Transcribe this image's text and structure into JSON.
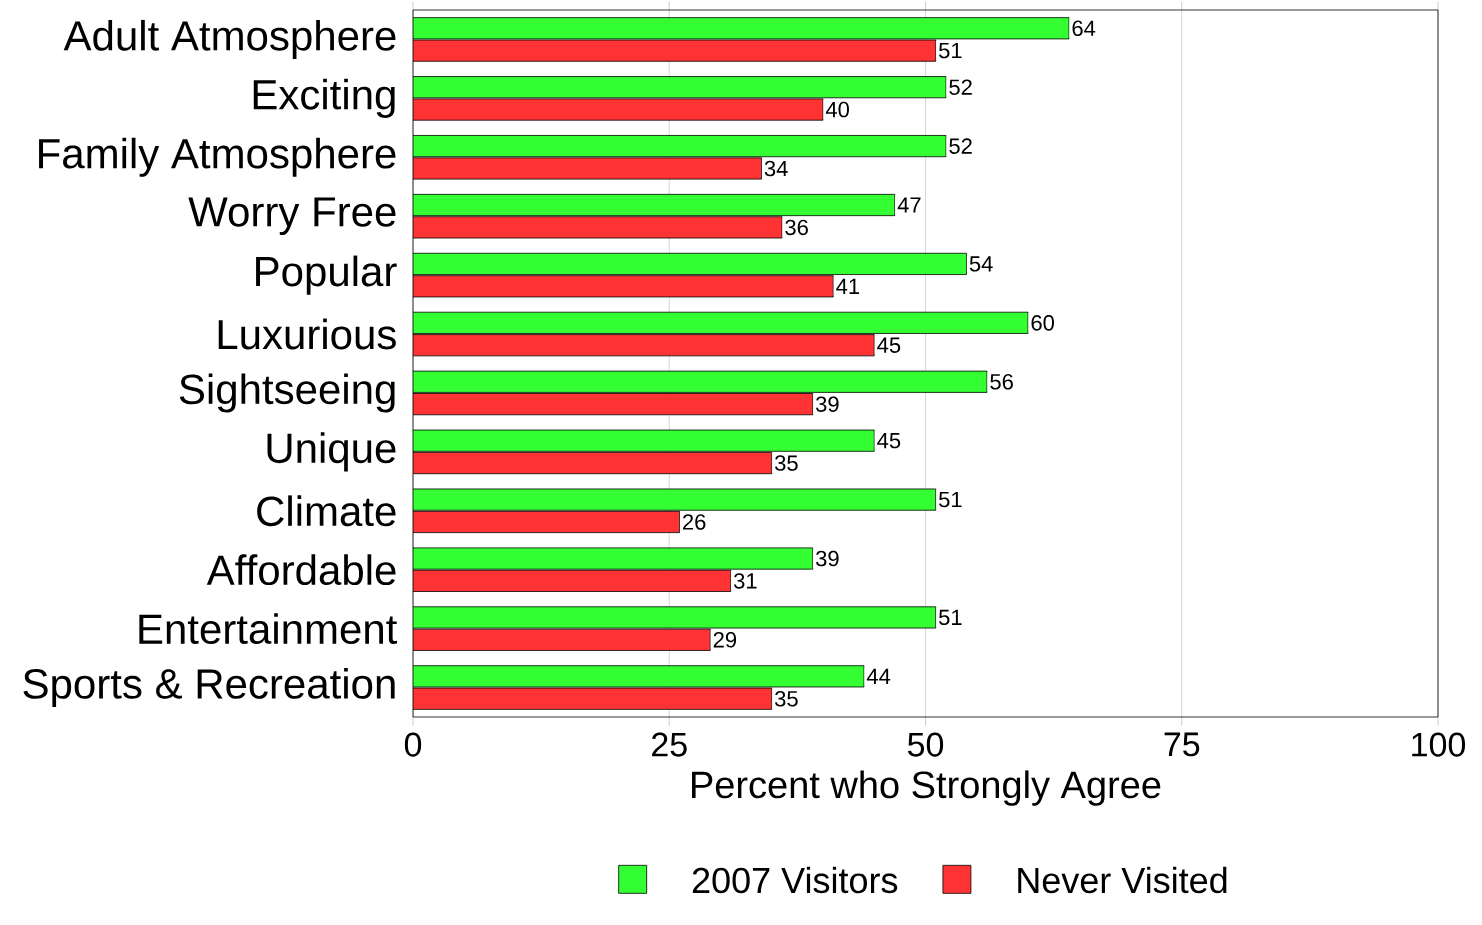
{
  "chart_data": {
    "type": "bar",
    "orientation": "horizontal",
    "xlabel": "Percent who Strongly Agree",
    "categories": [
      "Adult Atmosphere",
      "Exciting",
      "Family Atmosphere",
      "Worry Free",
      "Popular",
      "Luxurious",
      "Sightseeing",
      "Unique",
      "Climate",
      "Affordable",
      "Entertainment",
      "Sports & Recreation"
    ],
    "series": [
      {
        "name": "2007 Visitors",
        "color": "#33ff33",
        "values": [
          64,
          52,
          52,
          47,
          54,
          60,
          56,
          45,
          51,
          39,
          51,
          44
        ]
      },
      {
        "name": "Never Visited",
        "color": "#ff3333",
        "values": [
          51,
          40,
          34,
          36,
          41,
          45,
          39,
          35,
          26,
          31,
          29,
          35
        ]
      }
    ],
    "xlim": [
      0,
      100
    ],
    "xticks": [
      0,
      25,
      50,
      75,
      100
    ],
    "grid": "x",
    "legend": "bottom",
    "data_labels": true
  }
}
